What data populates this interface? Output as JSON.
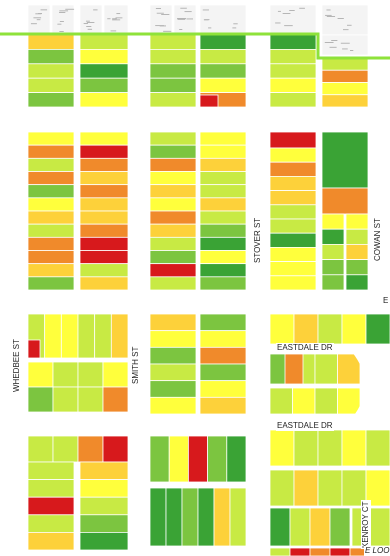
{
  "streets": {
    "whedbee": "WHEDBEE ST",
    "smith": "SMITH ST",
    "stover": "STOVER ST",
    "cowan": "COWAN ST",
    "eastdale_upper": "EASTDALE DR",
    "eastdale_lower": "EASTDALE DR",
    "kenroy": "KENROY CT",
    "loop": "E LOO",
    "edge_e": "E"
  },
  "legend_colors": {
    "boundary": "#8ee23a",
    "high": "#d7191c",
    "elevated": "#f08a2b",
    "moderate": "#fdd13a",
    "low_moderate": "#ffff3c",
    "low": "#c8ea44",
    "very_low": "#7cc540",
    "minimal": "#3aa335",
    "unrated": "#f4f4f4"
  }
}
